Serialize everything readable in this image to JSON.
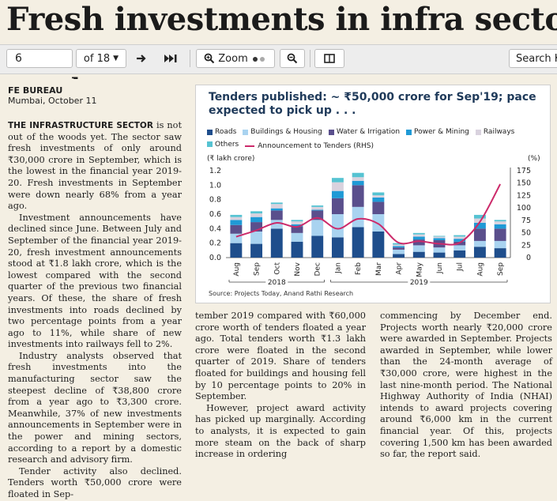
{
  "headline": "Fresh investments in infra sector",
  "toolbar": {
    "page_value": "6",
    "page_of": "of 18",
    "zoom_label": "Zoom",
    "search_placeholder": "Search Ke"
  },
  "article": {
    "bureau": "FE BUREAU",
    "dateline": "Mumbai, October 11",
    "col1": {
      "lead": "THE INFRASTRUCTURE SECTOR",
      "p1_rest": " is not out of the woods yet. The sector saw fresh investments of only around ₹30,000 crore in September, which is the lowest in the financial year 2019-20. Fresh investments in September were down nearly 68% from a year ago.",
      "p2": "Investment announcements have declined since June. Between July and September of the financial year 2019-20, fresh investment announcements stood at ₹1.8 lakh crore, which is the lowest compared with the second quarter of the previous two financial years. Of these, the share of fresh investments into roads declined by two percentage points from a year ago to 11%, while share of new investments into railways fell to 2%.",
      "p3": "Industry analysts observed that fresh investments into the manufacturing sector saw the steepest decline of ₹38,800 crore from a year ago to ₹3,300 crore. Meanwhile, 37% of new investments announcements in September were in the power and mining sectors, according to a report by a domestic research and advisory firm.",
      "p4": "Tender activity also declined. Tenders worth ₹50,000 crore were floated in Sep-"
    },
    "col2": {
      "p1": "tember 2019 compared with ₹60,000 crore worth of tenders floated a year ago. Total tenders worth ₹1.3 lakh crore were floated in the second quarter of 2019. Share of tenders floated for buildings and housing fell by 10 percentage points to 20% in September.",
      "p2": "However, project award activity has picked up marginally. According to analysts, it is expected to gain more steam on the back of sharp increase in ordering"
    },
    "col3": {
      "p1": "commencing by December end. Projects worth nearly ₹20,000 crore were awarded in September. Projects awarded in September, while lower than the 24-month average of ₹30,000 crore, were highest in the last nine-month period. The National Highway Authority of India (NHAI) intends to award projects covering around ₹6,000 km in the current financial year. Of this, projects covering 1,500 km has been awarded so far, the report said."
    }
  },
  "chart_data": {
    "type": "bar",
    "title": "Tenders published: ~ ₹50,000 crore for Sep'19; pace expected to pick up . . .",
    "ylabel_left": "(₹ lakh crore)",
    "ylabel_right": "(%)",
    "ylim": [
      0,
      1.2
    ],
    "ylim_right": [
      0,
      175
    ],
    "yticks_left": [
      "0.0",
      "0.2",
      "0.4",
      "0.6",
      "0.8",
      "1.0",
      "1.2"
    ],
    "yticks_right": [
      "0",
      "25",
      "50",
      "75",
      "100",
      "125",
      "150",
      "175"
    ],
    "categories": [
      "Aug",
      "Sep",
      "Oct",
      "Nov",
      "Dec",
      "Jan",
      "Feb",
      "Mar",
      "Apr",
      "May",
      "Jun",
      "Jul",
      "Aug",
      "Sep"
    ],
    "year_groups": [
      {
        "label": "2018",
        "from": 0,
        "to": 4
      },
      {
        "label": "2019",
        "from": 5,
        "to": 13
      }
    ],
    "series": [
      {
        "name": "Roads",
        "color": "#1f4e8c",
        "values": [
          0.2,
          0.19,
          0.4,
          0.22,
          0.3,
          0.28,
          0.42,
          0.36,
          0.05,
          0.08,
          0.07,
          0.1,
          0.15,
          0.13
        ]
      },
      {
        "name": "Buildings & Housing",
        "color": "#a9d3f0",
        "values": [
          0.13,
          0.17,
          0.12,
          0.12,
          0.22,
          0.32,
          0.28,
          0.24,
          0.06,
          0.09,
          0.07,
          0.07,
          0.08,
          0.1
        ]
      },
      {
        "name": "Water & Irrigation",
        "color": "#5a4f8c",
        "values": [
          0.12,
          0.13,
          0.13,
          0.09,
          0.13,
          0.22,
          0.3,
          0.17,
          0.03,
          0.08,
          0.1,
          0.05,
          0.17,
          0.17
        ]
      },
      {
        "name": "Power & Mining",
        "color": "#1f9ad6",
        "values": [
          0.07,
          0.07,
          0.03,
          0.03,
          0.01,
          0.1,
          0.06,
          0.06,
          0.02,
          0.04,
          0.03,
          0.04,
          0.08,
          0.06
        ]
      },
      {
        "name": "Railways",
        "color": "#d9d2de",
        "values": [
          0.04,
          0.05,
          0.06,
          0.04,
          0.04,
          0.12,
          0.05,
          0.03,
          0.02,
          0.03,
          0.02,
          0.03,
          0.06,
          0.04
        ]
      },
      {
        "name": "Others",
        "color": "#56c3d2",
        "values": [
          0.03,
          0.03,
          0.02,
          0.02,
          0.02,
          0.06,
          0.06,
          0.04,
          0.02,
          0.02,
          0.01,
          0.02,
          0.05,
          0.02
        ]
      }
    ],
    "line_series": {
      "name": "Announcement to Tenders (RHS)",
      "color": "#cc2a6a",
      "values": [
        42,
        55,
        70,
        62,
        80,
        58,
        78,
        68,
        30,
        33,
        28,
        30,
        72,
        148
      ]
    },
    "source": "Source: Projects Today, Anand Rathi Research"
  }
}
